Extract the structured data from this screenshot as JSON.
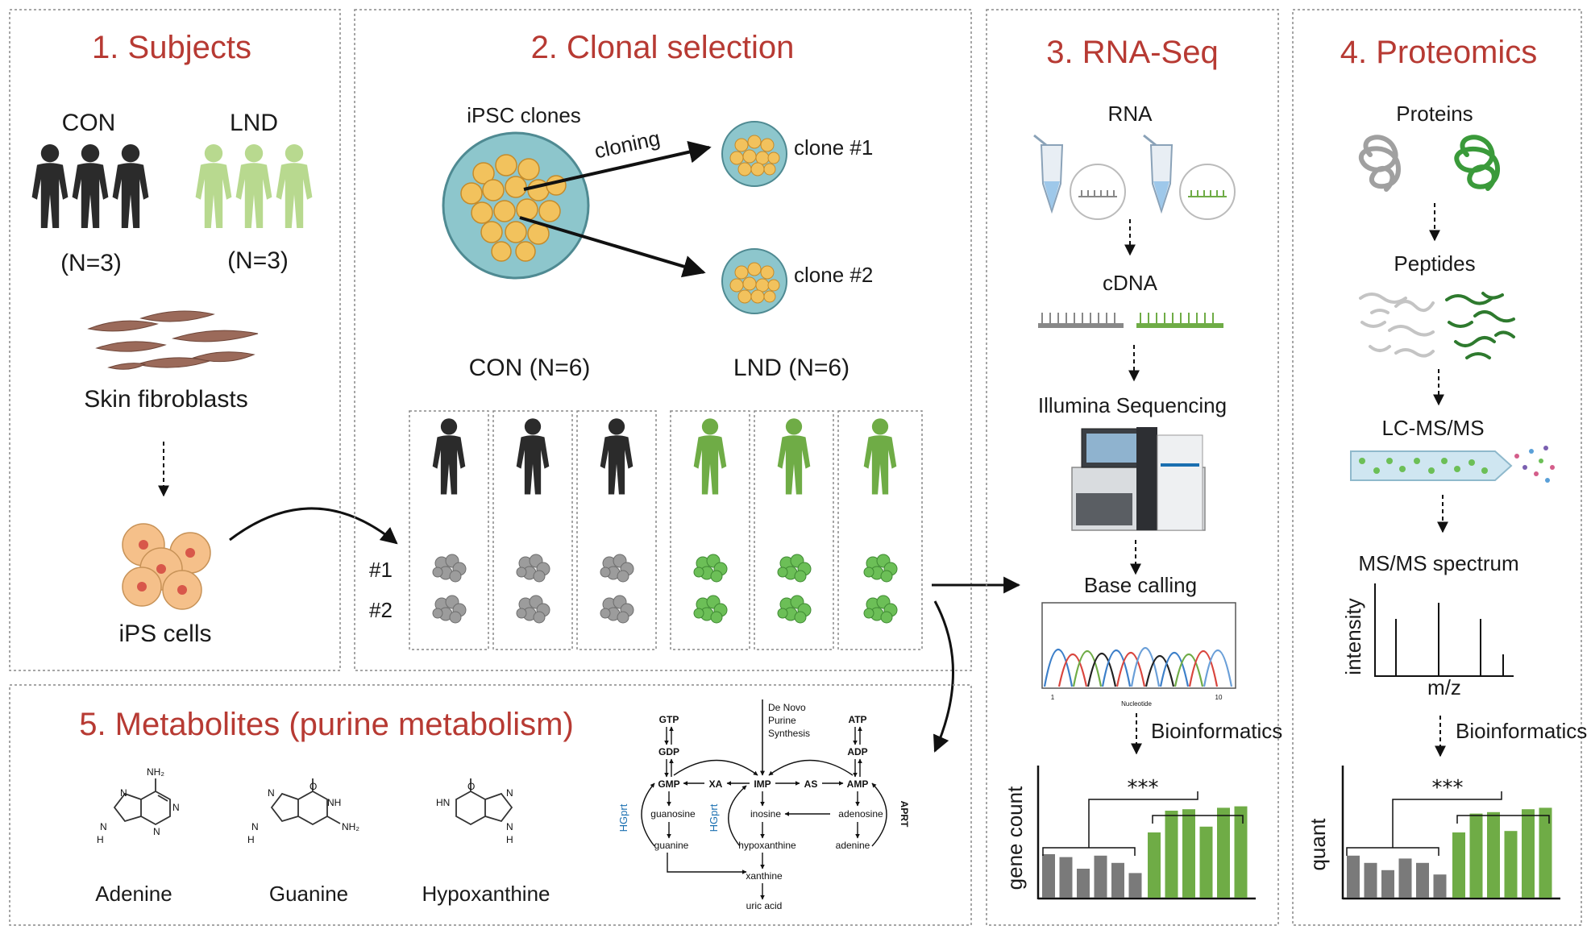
{
  "panels": {
    "subjects": {
      "title": "1. Subjects",
      "con_label": "CON",
      "lnd_label": "LND",
      "con_n": "(N=3)",
      "lnd_n": "(N=3)",
      "fibroblasts": "Skin fibroblasts",
      "ips": "iPS cells"
    },
    "clonal": {
      "title": "2. Clonal selection",
      "ipsc": "iPSC clones",
      "cloning": "cloning",
      "clone1": "clone #1",
      "clone2": "clone #2",
      "con_group": "CON (N=6)",
      "lnd_group": "LND (N=6)",
      "row1": "#1",
      "row2": "#2"
    },
    "rnaseq": {
      "title": "3. RNA-Seq",
      "rna": "RNA",
      "cdna": "cDNA",
      "illumina": "Illumina Sequencing",
      "basecalling": "Base calling",
      "tick_start": "1",
      "tick_end": "10",
      "x_axis": "Nucleotide",
      "bioinf": "Bioinformatics",
      "ylabel": "gene count"
    },
    "proteomics": {
      "title": "4. Proteomics",
      "proteins": "Proteins",
      "peptides": "Peptides",
      "lcms": "LC-MS/MS",
      "spectrum": "MS/MS spectrum",
      "ylabel": "intensity",
      "xlabel": "m/z",
      "bioinf": "Bioinformatics",
      "quant": "quant"
    },
    "metabolites": {
      "title": "5. Metabolites (purine metabolism)",
      "compounds": [
        "Adenine",
        "Guanine",
        "Hypoxanthine"
      ],
      "pathway": {
        "denovo": [
          "De Novo",
          "Purine",
          "Synthesis"
        ],
        "gtp": "GTP",
        "gdp": "GDP",
        "gmp": "GMP",
        "xa": "XA",
        "imp": "IMP",
        "as": "AS",
        "amp": "AMP",
        "adp": "ADP",
        "atp": "ATP",
        "guanosine": "guanosine",
        "inosine": "inosine",
        "adenosine": "adenosine",
        "guanine": "guanine",
        "hypoxanthine": "hypoxanthine",
        "adenine": "adenine",
        "xanthine": "xanthine",
        "uric_acid": "uric acid",
        "hgprt": "HGprt",
        "aprt": "APRT"
      }
    }
  },
  "colors": {
    "title": "#b73a33",
    "con": "#2b2b2b",
    "lnd": "#7fb069",
    "bar_gray": "#7a7a7a",
    "bar_green": "#6fac46"
  },
  "chart_data": [
    {
      "type": "bar",
      "panel": "RNA-Seq",
      "ylabel": "gene count",
      "series": [
        {
          "values": [
            0.3,
            0.28,
            0.2,
            0.29,
            0.24,
            0.17
          ]
        },
        {
          "values": [
            0.45,
            0.6,
            0.61,
            0.49,
            0.62,
            0.63
          ]
        }
      ],
      "significance": "***"
    },
    {
      "type": "bar",
      "panel": "Proteomics",
      "ylabel": "quant",
      "series": [
        {
          "values": [
            0.29,
            0.24,
            0.19,
            0.27,
            0.24,
            0.16
          ]
        },
        {
          "values": [
            0.45,
            0.58,
            0.59,
            0.46,
            0.61,
            0.62
          ]
        }
      ],
      "significance": "***"
    }
  ]
}
